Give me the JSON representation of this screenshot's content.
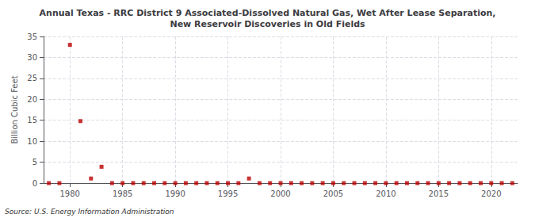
{
  "chart_data": {
    "type": "scatter",
    "title": "Annual Texas - RRC District 9 Associated-Dissolved Natural Gas, Wet After Lease Separation,\nNew Reservoir Discoveries in Old Fields",
    "ylabel": "Billion Cubic Feet",
    "source": "Source: U.S. Energy Information Administration",
    "x": [
      1978,
      1979,
      1980,
      1981,
      1982,
      1983,
      1984,
      1985,
      1986,
      1987,
      1988,
      1989,
      1990,
      1991,
      1992,
      1993,
      1994,
      1995,
      1996,
      1997,
      1998,
      1999,
      2000,
      2001,
      2002,
      2003,
      2004,
      2005,
      2006,
      2007,
      2008,
      2009,
      2010,
      2011,
      2012,
      2013,
      2014,
      2015,
      2016,
      2017,
      2018,
      2019,
      2020,
      2021,
      2022
    ],
    "values": [
      0.0,
      0.0,
      33.0,
      14.8,
      1.1,
      3.9,
      0.0,
      0.0,
      0.0,
      0.0,
      0.0,
      0.0,
      0.0,
      0.0,
      0.0,
      0.0,
      0.0,
      0.0,
      0.0,
      1.1,
      0.0,
      0.0,
      0.0,
      0.0,
      0.0,
      0.0,
      0.0,
      0.0,
      0.0,
      0.0,
      0.0,
      0.0,
      0.0,
      0.0,
      0.0,
      0.0,
      0.0,
      0.0,
      0.0,
      0.0,
      0.0,
      0.0,
      0.0,
      0.0,
      0.0
    ],
    "color": "#bb0000",
    "marker": "square",
    "xlim": [
      1977.5,
      2022.5
    ],
    "ylim": [
      0,
      35
    ],
    "xticks": [
      1980,
      1985,
      1990,
      1995,
      2000,
      2005,
      2010,
      2015,
      2020
    ],
    "yticks": [
      0,
      5,
      10,
      15,
      20,
      25,
      30,
      35
    ],
    "grid": true
  }
}
